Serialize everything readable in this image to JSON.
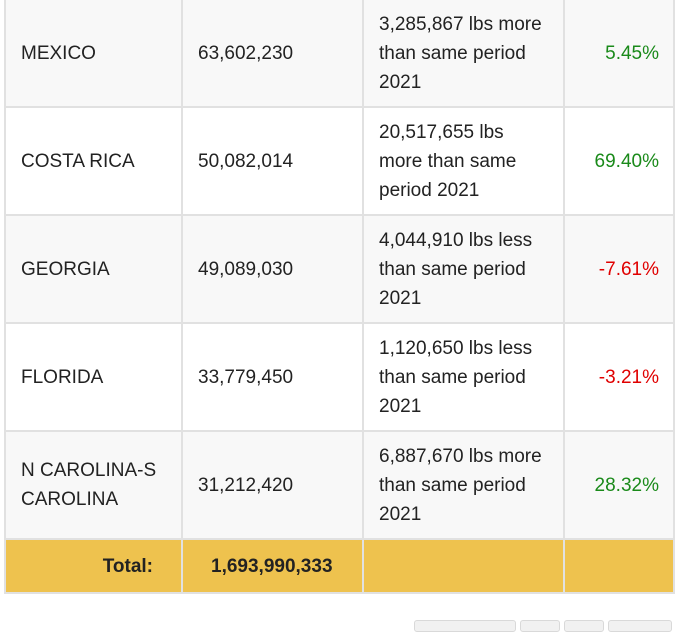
{
  "rows": [
    {
      "state": "MEXICO",
      "lbs": "63,602,230",
      "change": "3,285,867 lbs more than same period 2021",
      "pct": "5.45%",
      "direction": "up"
    },
    {
      "state": "COSTA RICA",
      "lbs": "50,082,014",
      "change": "20,517,655 lbs more than same period 2021",
      "pct": "69.40%",
      "direction": "up"
    },
    {
      "state": "GEORGIA",
      "lbs": "49,089,030",
      "change": "4,044,910 lbs less than same period 2021",
      "pct": "-7.61%",
      "direction": "down"
    },
    {
      "state": "FLORIDA",
      "lbs": "33,779,450",
      "change": "1,120,650 lbs less than same period 2021",
      "pct": "-3.21%",
      "direction": "down"
    },
    {
      "state": "N CAROLINA-S CAROLINA",
      "lbs": "31,212,420",
      "change": "6,887,670 lbs more than same period 2021",
      "pct": "28.32%",
      "direction": "up"
    }
  ],
  "total": {
    "label": "Total:",
    "value": "1,693,990,333"
  },
  "colors": {
    "positive": "#1a8a1a",
    "negative": "#e00000",
    "total_row": "#eec24e",
    "border": "#e1e1e1"
  }
}
